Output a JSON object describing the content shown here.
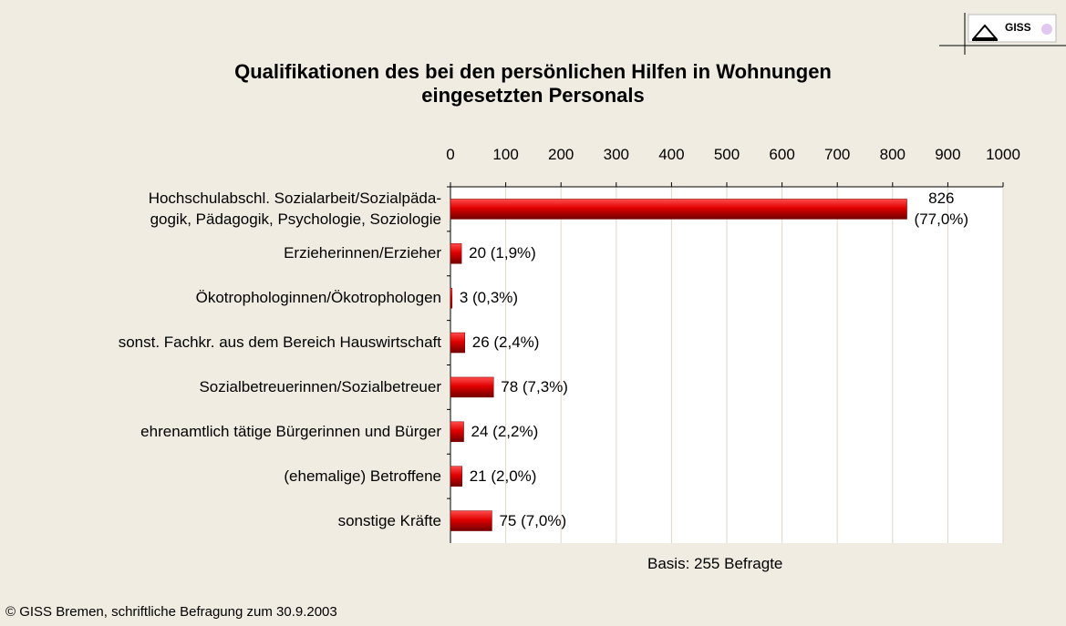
{
  "chart_data": {
    "type": "barh",
    "title": "Qualifikationen des bei den persönlichen Hilfen in Wohnungen\neingesetzten Personals",
    "categories": [
      "Hochschulabschl. Sozialarbeit/Sozialpäda-\ngogik, Pädagogik, Psychologie, Soziologie",
      "Erzieherinnen/Erzieher",
      "Ökotrophologinnen/Ökotrophologen",
      "sonst. Fachkr. aus dem Bereich Hauswirtschaft",
      "Sozialbetreuerinnen/Sozialbetreuer",
      "ehrenamtlich tätige Bürgerinnen und Bürger",
      "(ehemalige) Betroffene",
      "sonstige Kräfte"
    ],
    "values": [
      826,
      20,
      3,
      26,
      78,
      24,
      21,
      75
    ],
    "value_labels": [
      "826\n(77,0%)",
      "20 (1,9%)",
      "3 (0,3%)",
      "26 (2,4%)",
      "78 (7,3%)",
      "24 (2,2%)",
      "21 (2,0%)",
      "75 (7,0%)"
    ],
    "color": "#cc0000",
    "xlim": [
      0,
      1000
    ],
    "xticks": [
      0,
      100,
      200,
      300,
      400,
      500,
      600,
      700,
      800,
      900,
      1000
    ],
    "grid": true,
    "note": "Basis: 255 Befragte",
    "source": "© GISS Bremen, schriftliche Befragung zum 30.9.2003",
    "logo": "GISS"
  }
}
